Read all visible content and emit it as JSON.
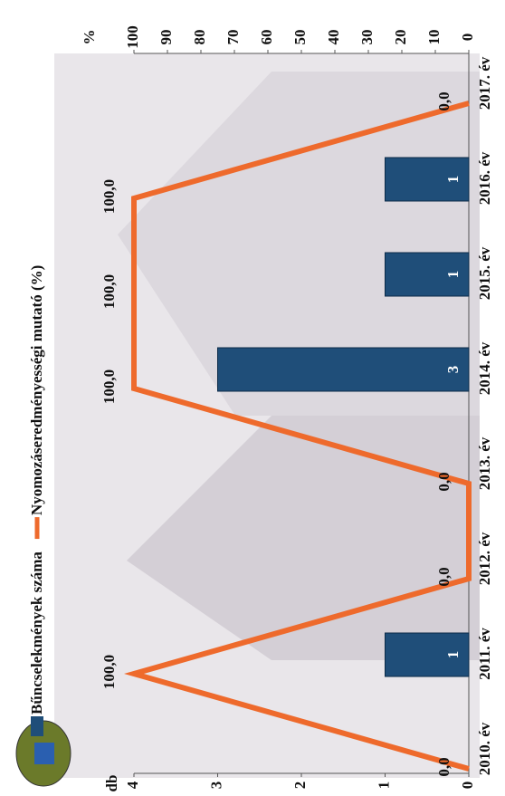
{
  "chart_data": {
    "type": "bar_line",
    "legend": "top",
    "categories": [
      "2010. év",
      "2011. év",
      "2012. év",
      "2013. év",
      "2014. év",
      "2015. év",
      "2016. év",
      "2017. év"
    ],
    "series": [
      {
        "name": "Bűncselekmények száma",
        "type": "bar",
        "color": "#1f4e79",
        "values": [
          0,
          1,
          0,
          0,
          3,
          1,
          1,
          0
        ],
        "value_labels": [
          null,
          "1",
          null,
          null,
          "3",
          "1",
          "1",
          null
        ]
      },
      {
        "name": "Nyomozáseredményességi mutató (%)",
        "type": "line",
        "axis": "y2",
        "color": "#ee6a2c",
        "values": [
          0,
          100,
          0,
          0,
          100,
          100,
          100,
          0
        ],
        "value_labels": [
          "0,0",
          "100,0",
          "0,0",
          "0,0",
          "100,0",
          "100,0",
          "100,0",
          "0,0"
        ]
      }
    ],
    "ylabel": "db",
    "ylim": [
      0,
      4
    ],
    "yticks": [
      0,
      1,
      2,
      3,
      4
    ],
    "y2label": "%",
    "y2lim": [
      0,
      100
    ],
    "y2ticks": [
      0,
      10,
      20,
      30,
      40,
      50,
      60,
      70,
      80,
      90,
      100
    ]
  }
}
